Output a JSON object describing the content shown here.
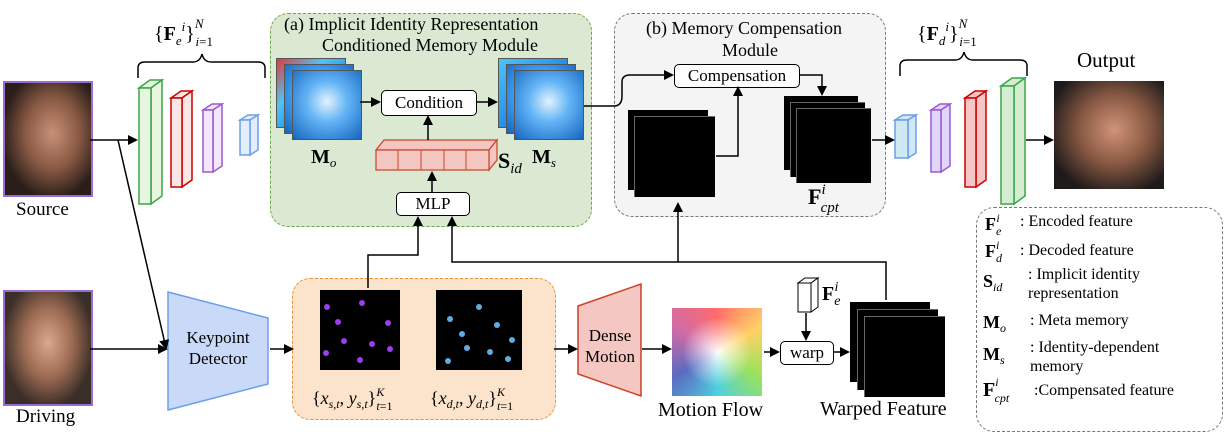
{
  "panel_a": {
    "title_line1": "(a) Implicit Identity Representation",
    "title_line2": "Conditioned Memory Module"
  },
  "panel_b": {
    "title_line1": "(b) Memory Compensation",
    "title_line2": "Module"
  },
  "labels": {
    "source": "Source",
    "driving": "Driving",
    "output": "Output",
    "condition": "Condition",
    "compensation": "Compensation",
    "mlp": "MLP",
    "keypoint_detector_line1": "Keypoint",
    "keypoint_detector_line2": "Detector",
    "dense_motion_line1": "Dense",
    "dense_motion_line2": "Motion",
    "warp": "warp",
    "motion_flow": "Motion Flow",
    "warped_feature": "Warped Feature"
  },
  "math": {
    "fe_set": "{F_e^i}_{i=1}^N",
    "fd_set": "{F_d^i}_{i=1}^N",
    "mo": "M_o",
    "ms": "M_s",
    "sid": "S_id",
    "fcpt": "F_cpt^i",
    "fe": "F_e^i",
    "kp_source": "{x_{s,t}, y_{s,t}}_{t=1}^K",
    "kp_driving": "{x_{d,t}, y_{d,t}}_{t=1}^K"
  },
  "legend": [
    {
      "symbol": "F_e^i",
      "desc": ": Encoded feature"
    },
    {
      "symbol": "F_d^i",
      "desc": ": Decoded feature"
    },
    {
      "symbol": "S_id",
      "desc": ": Implicit identity representation"
    },
    {
      "symbol": "M_o",
      "desc": ": Meta memory"
    },
    {
      "symbol": "M_s",
      "desc": ": Identity-dependent memory"
    },
    {
      "symbol": "F_cpt^i",
      "desc": ":Compensated feature"
    }
  ],
  "colors": {
    "panel_a_bg": "#dbe9d3",
    "panel_a_border": "#6aa84f",
    "panel_b_bg": "#f2f2f2",
    "kp_panel_bg": "#fbe3cc",
    "kp_panel_border": "#e69138",
    "keypoint_detector": "#c9daf8",
    "dense_motion": "#f4c7c3",
    "encoder_green": "#38a745",
    "encoder_red": "#cc0000",
    "encoder_purple": "#9b59d0",
    "encoder_blue": "#6d9eeb",
    "sid_fill": "#f4c7c3",
    "sid_border": "#cc4125",
    "kp_source_color": "#9b3df0",
    "kp_driving_color": "#5dade2"
  }
}
